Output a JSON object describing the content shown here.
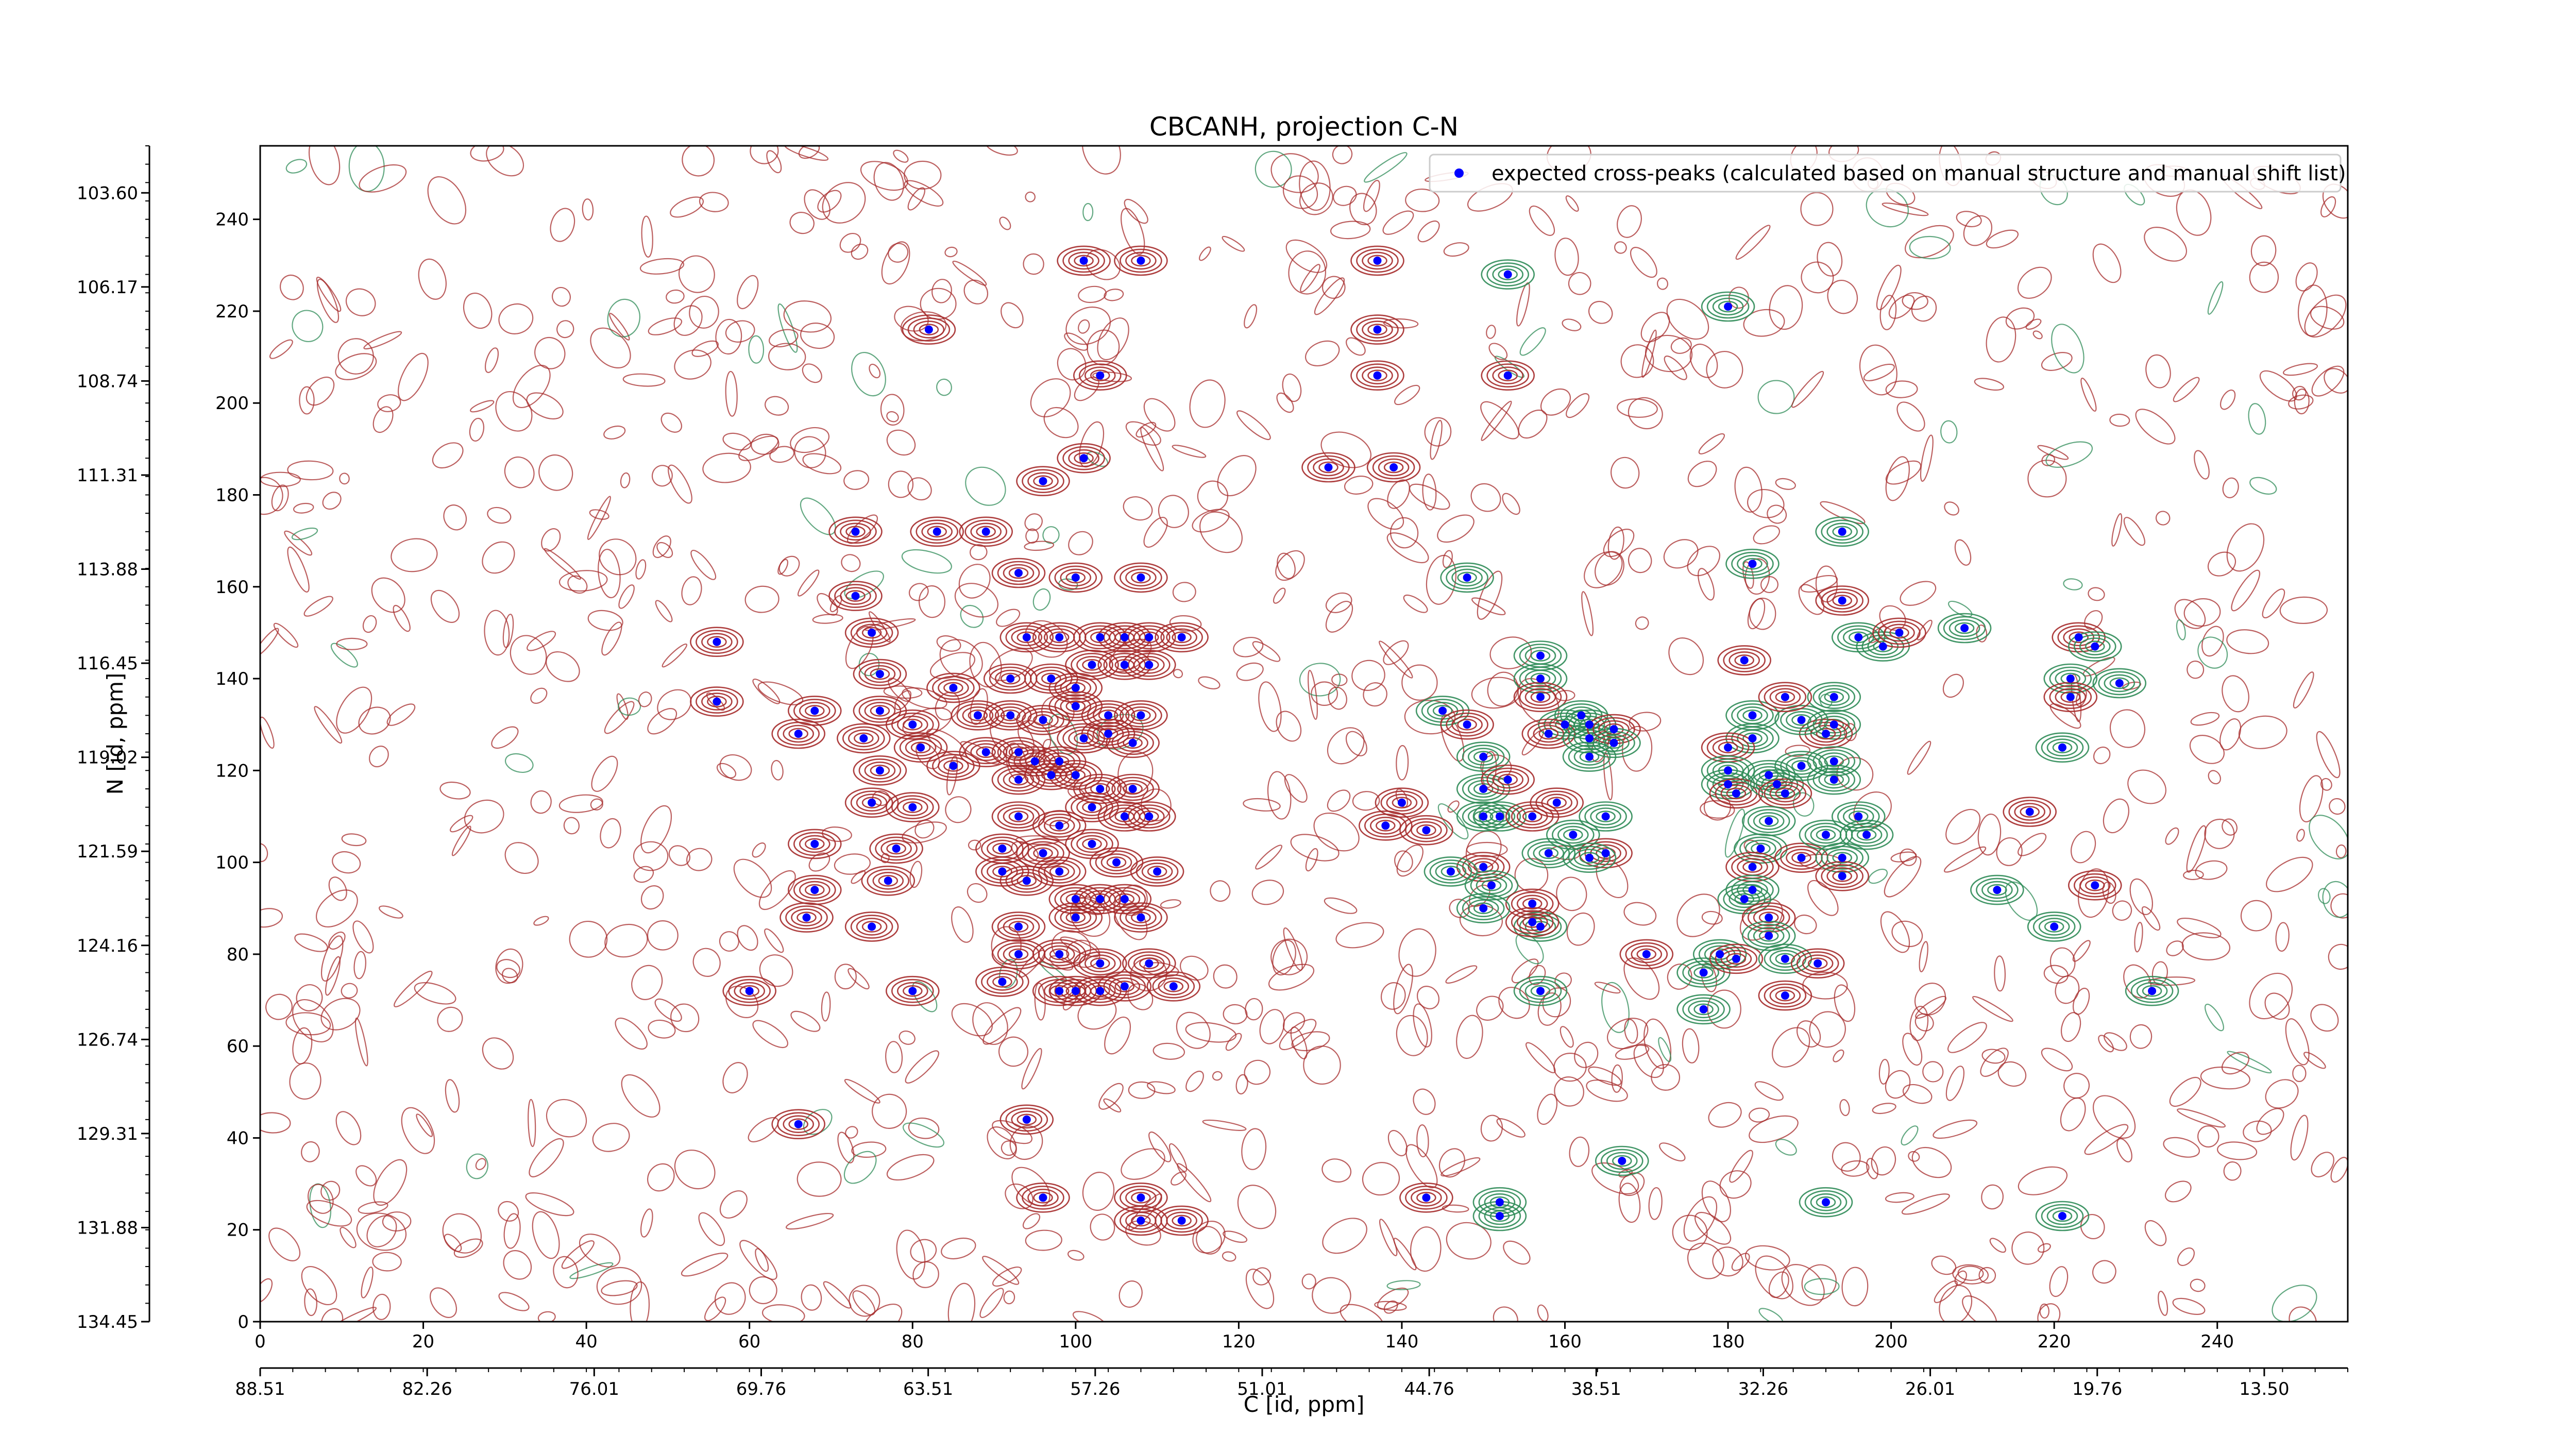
{
  "chart_data": {
    "type": "scatter",
    "title": "CBCANH, projection C-N",
    "xlabel": "C [id, ppm]",
    "ylabel": "N [id, ppm]",
    "x_index_range": [
      0,
      256
    ],
    "y_index_range": [
      0,
      256
    ],
    "x_index_ticks": [
      0,
      20,
      40,
      60,
      80,
      100,
      120,
      140,
      160,
      180,
      200,
      220,
      240
    ],
    "y_index_ticks": [
      0,
      20,
      40,
      60,
      80,
      100,
      120,
      140,
      160,
      180,
      200,
      220,
      240
    ],
    "x_ppm_ticks": [
      {
        "index": 0,
        "label": "88.51"
      },
      {
        "index": 20.48,
        "label": "82.26"
      },
      {
        "index": 40.96,
        "label": "76.01"
      },
      {
        "index": 61.44,
        "label": "69.76"
      },
      {
        "index": 81.92,
        "label": "63.51"
      },
      {
        "index": 102.4,
        "label": "57.26"
      },
      {
        "index": 122.88,
        "label": "51.01"
      },
      {
        "index": 143.36,
        "label": "44.76"
      },
      {
        "index": 163.84,
        "label": "38.51"
      },
      {
        "index": 184.32,
        "label": "32.26"
      },
      {
        "index": 204.8,
        "label": "26.01"
      },
      {
        "index": 225.28,
        "label": "19.76"
      },
      {
        "index": 245.76,
        "label": "13.50"
      }
    ],
    "y_ppm_ticks": [
      {
        "index": 0,
        "label": "134.45"
      },
      {
        "index": 20.48,
        "label": "131.88"
      },
      {
        "index": 40.96,
        "label": "129.31"
      },
      {
        "index": 61.44,
        "label": "126.74"
      },
      {
        "index": 81.92,
        "label": "124.16"
      },
      {
        "index": 102.4,
        "label": "121.59"
      },
      {
        "index": 122.88,
        "label": "119.02"
      },
      {
        "index": 143.36,
        "label": "116.45"
      },
      {
        "index": 163.84,
        "label": "113.88"
      },
      {
        "index": 184.32,
        "label": "111.31"
      },
      {
        "index": 204.8,
        "label": "108.74"
      },
      {
        "index": 225.28,
        "label": "106.17"
      },
      {
        "index": 245.76,
        "label": "103.60"
      }
    ],
    "legend": {
      "position": "top-right",
      "label": "expected cross-peaks (calculated based on manual structure and manual shift list)",
      "marker_color": "#0000ff"
    },
    "contour_colors": {
      "positive": "#a52a2a",
      "negative": "#2e8b57"
    },
    "grid": false,
    "series": [
      {
        "name": "expected cross-peaks (calculated based on manual structure and manual shift list)",
        "points": [
          [
            101,
            231
          ],
          [
            108,
            231
          ],
          [
            82,
            216
          ],
          [
            103,
            206
          ],
          [
            96,
            183
          ],
          [
            101,
            188
          ],
          [
            73,
            172
          ],
          [
            83,
            172
          ],
          [
            89,
            172
          ],
          [
            93,
            163
          ],
          [
            100,
            162
          ],
          [
            108,
            162
          ],
          [
            73,
            158
          ],
          [
            56,
            148
          ],
          [
            75,
            150
          ],
          [
            94,
            149
          ],
          [
            98,
            149
          ],
          [
            103,
            149
          ],
          [
            106,
            149
          ],
          [
            109,
            149
          ],
          [
            113,
            149
          ],
          [
            56,
            135
          ],
          [
            76,
            141
          ],
          [
            85,
            138
          ],
          [
            92,
            140
          ],
          [
            97,
            140
          ],
          [
            100,
            138
          ],
          [
            102,
            143
          ],
          [
            106,
            143
          ],
          [
            109,
            143
          ],
          [
            68,
            133
          ],
          [
            76,
            133
          ],
          [
            80,
            130
          ],
          [
            88,
            132
          ],
          [
            92,
            132
          ],
          [
            96,
            131
          ],
          [
            100,
            134
          ],
          [
            104,
            132
          ],
          [
            108,
            132
          ],
          [
            66,
            128
          ],
          [
            74,
            127
          ],
          [
            81,
            125
          ],
          [
            89,
            124
          ],
          [
            93,
            124
          ],
          [
            95,
            122
          ],
          [
            98,
            122
          ],
          [
            101,
            127
          ],
          [
            104,
            128
          ],
          [
            107,
            126
          ],
          [
            76,
            120
          ],
          [
            85,
            121
          ],
          [
            93,
            118
          ],
          [
            97,
            119
          ],
          [
            100,
            119
          ],
          [
            103,
            116
          ],
          [
            107,
            116
          ],
          [
            75,
            113
          ],
          [
            80,
            112
          ],
          [
            93,
            110
          ],
          [
            98,
            108
          ],
          [
            102,
            112
          ],
          [
            106,
            110
          ],
          [
            109,
            110
          ],
          [
            68,
            104
          ],
          [
            78,
            103
          ],
          [
            91,
            103
          ],
          [
            96,
            102
          ],
          [
            102,
            104
          ],
          [
            105,
            100
          ],
          [
            110,
            98
          ],
          [
            68,
            94
          ],
          [
            77,
            96
          ],
          [
            91,
            98
          ],
          [
            94,
            96
          ],
          [
            98,
            98
          ],
          [
            100,
            92
          ],
          [
            103,
            92
          ],
          [
            106,
            92
          ],
          [
            67,
            88
          ],
          [
            75,
            86
          ],
          [
            93,
            86
          ],
          [
            100,
            88
          ],
          [
            108,
            88
          ],
          [
            93,
            80
          ],
          [
            98,
            80
          ],
          [
            103,
            78
          ],
          [
            109,
            78
          ],
          [
            91,
            74
          ],
          [
            98,
            72
          ],
          [
            100,
            72
          ],
          [
            103,
            72
          ],
          [
            106,
            73
          ],
          [
            112,
            73
          ],
          [
            80,
            72
          ],
          [
            60,
            72
          ],
          [
            66,
            43
          ],
          [
            94,
            44
          ],
          [
            96,
            27
          ],
          [
            108,
            27
          ],
          [
            108,
            22
          ],
          [
            113,
            22
          ],
          [
            131,
            186
          ],
          [
            139,
            186
          ],
          [
            137,
            216
          ],
          [
            137,
            206
          ],
          [
            137,
            231
          ],
          [
            140,
            113
          ],
          [
            138,
            108
          ],
          [
            143,
            107
          ],
          [
            148,
            162
          ],
          [
            145,
            133
          ],
          [
            148,
            130
          ],
          [
            150,
            123
          ],
          [
            150,
            116
          ],
          [
            153,
            118
          ],
          [
            150,
            110
          ],
          [
            152,
            110
          ],
          [
            156,
            110
          ],
          [
            157,
            145
          ],
          [
            157,
            140
          ],
          [
            157,
            136
          ],
          [
            162,
            132
          ],
          [
            160,
            130
          ],
          [
            158,
            128
          ],
          [
            163,
            127
          ],
          [
            163,
            123
          ],
          [
            159,
            113
          ],
          [
            161,
            106
          ],
          [
            165,
            110
          ],
          [
            165,
            102
          ],
          [
            163,
            101
          ],
          [
            158,
            102
          ],
          [
            150,
            99
          ],
          [
            146,
            98
          ],
          [
            151,
            95
          ],
          [
            156,
            91
          ],
          [
            157,
            86
          ],
          [
            150,
            90
          ],
          [
            156,
            87
          ],
          [
            157,
            72
          ],
          [
            163,
            130
          ],
          [
            166,
            129
          ],
          [
            166,
            126
          ],
          [
            167,
            35
          ],
          [
            170,
            80
          ],
          [
            177,
            76
          ],
          [
            179,
            80
          ],
          [
            181,
            79
          ],
          [
            177,
            68
          ],
          [
            152,
            26
          ],
          [
            143,
            27
          ],
          [
            152,
            23
          ],
          [
            153,
            228
          ],
          [
            153,
            206
          ],
          [
            180,
            221
          ],
          [
            183,
            165
          ],
          [
            182,
            144
          ],
          [
            183,
            132
          ],
          [
            183,
            127
          ],
          [
            180,
            125
          ],
          [
            180,
            120
          ],
          [
            180,
            117
          ],
          [
            181,
            115
          ],
          [
            185,
            119
          ],
          [
            186,
            117
          ],
          [
            187,
            115
          ],
          [
            185,
            109
          ],
          [
            184,
            103
          ],
          [
            183,
            99
          ],
          [
            183,
            94
          ],
          [
            182,
            92
          ],
          [
            185,
            88
          ],
          [
            185,
            84
          ],
          [
            187,
            79
          ],
          [
            191,
            78
          ],
          [
            193,
            136
          ],
          [
            193,
            130
          ],
          [
            192,
            128
          ],
          [
            193,
            122
          ],
          [
            189,
            131
          ],
          [
            187,
            136
          ],
          [
            189,
            121
          ],
          [
            193,
            118
          ],
          [
            189,
            101
          ],
          [
            192,
            106
          ],
          [
            194,
            101
          ],
          [
            194,
            97
          ],
          [
            196,
            110
          ],
          [
            197,
            106
          ],
          [
            187,
            71
          ],
          [
            192,
            26
          ],
          [
            194,
            172
          ],
          [
            194,
            157
          ],
          [
            196,
            149
          ],
          [
            199,
            147
          ],
          [
            201,
            150
          ],
          [
            209,
            151
          ],
          [
            213,
            94
          ],
          [
            217,
            111
          ],
          [
            220,
            86
          ],
          [
            221,
            23
          ],
          [
            223,
            149
          ],
          [
            225,
            147
          ],
          [
            222,
            140
          ],
          [
            222,
            136
          ],
          [
            228,
            139
          ],
          [
            221,
            125
          ],
          [
            225,
            95
          ],
          [
            232,
            72
          ]
        ]
      }
    ]
  }
}
